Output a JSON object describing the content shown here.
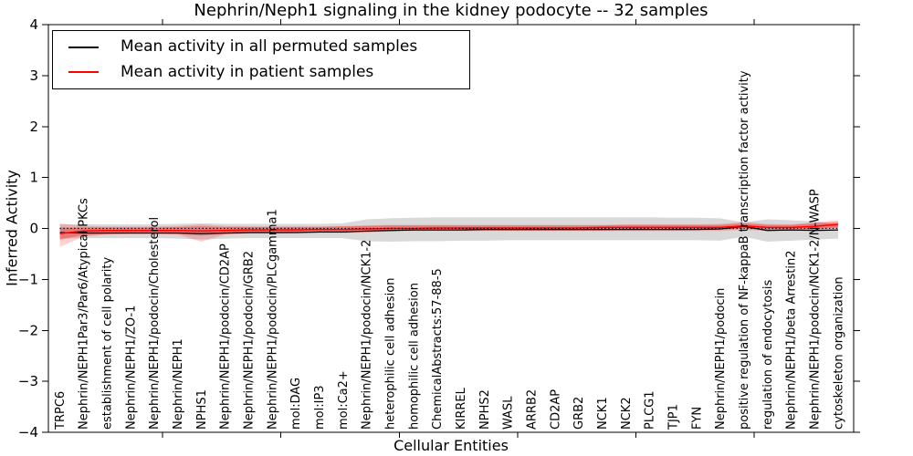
{
  "title": "Nephrin/Neph1 signaling in the kidney podocyte -- 32 samples",
  "legend": {
    "items": [
      {
        "label": "Mean activity in all permuted samples",
        "color": "#000000"
      },
      {
        "label": "Mean activity in patient samples",
        "color": "#ff0000"
      }
    ],
    "position": "upper left"
  },
  "chart_data": {
    "type": "line",
    "title": "Nephrin/Neph1 signaling in the kidney podocyte -- 32 samples",
    "xlabel": "Cellular Entities",
    "ylabel": "Inferred Activity",
    "ylim": [
      -4,
      4
    ],
    "ytick_labels": [
      "4",
      "3",
      "2",
      "1",
      "0",
      "−1",
      "−2",
      "−3",
      "−4"
    ],
    "grid": false,
    "legend_position": "upper left",
    "reference_line": {
      "y": 0,
      "style": "dotted",
      "color": "#000000"
    },
    "band_colors": {
      "permuted": "#aaaaaa",
      "patient": "#ff0000"
    },
    "categories": [
      "TRPC6",
      "Nephrin/NEPH1Par3/Par6/Atypical PKCs",
      "establishment of cell polarity",
      "Nephrin/NEPH1/ZO-1",
      "Nephrin/NEPH1/podocin/Cholesterol",
      "Nephrin/NEPH1",
      "NPHS1",
      "Nephrin/NEPH1/podocin/CD2AP",
      "Nephrin/NEPH1/podocin/GRB2",
      "Nephrin/NEPH1/podocin/PLCgamma1",
      "mol:DAG",
      "mol:IP3",
      "mol:Ca2+",
      "Nephrin/NEPH1/podocin/NCK1-2",
      "heterophilic cell adhesion",
      "homophilic cell adhesion",
      "ChemicalAbstracts:57-88-5",
      "KIRREL",
      "NPHS2",
      "WASL",
      "ARRB2",
      "CD2AP",
      "GRB2",
      "NCK1",
      "NCK2",
      "PLCG1",
      "TJP1",
      "FYN",
      "Nephrin/NEPH1/podocin",
      "positive regulation of NF-kappaB transcription factor activity",
      "regulation of endocytosis",
      "Nephrin/NEPH1/beta Arrestin2",
      "Nephrin/NEPH1/podocin/NCK1-2/N-WASP",
      "cytoskeleton organization"
    ],
    "series": [
      {
        "name": "Mean activity in all permuted samples",
        "color": "#000000",
        "values": [
          -0.08,
          -0.09,
          -0.09,
          -0.09,
          -0.09,
          -0.09,
          -0.1,
          -0.09,
          -0.08,
          -0.08,
          -0.08,
          -0.07,
          -0.07,
          -0.05,
          -0.04,
          -0.03,
          -0.03,
          -0.03,
          -0.02,
          -0.02,
          -0.02,
          -0.02,
          -0.02,
          -0.02,
          -0.02,
          -0.02,
          -0.02,
          -0.02,
          -0.01,
          0.04,
          -0.04,
          -0.03,
          -0.04,
          -0.03
        ]
      },
      {
        "name": "Mean activity in patient samples",
        "color": "#ff0000",
        "values": [
          -0.1,
          -0.05,
          -0.04,
          -0.04,
          -0.04,
          -0.04,
          -0.05,
          -0.04,
          -0.03,
          -0.03,
          -0.03,
          -0.02,
          -0.02,
          -0.01,
          0.0,
          0.0,
          0.01,
          0.01,
          0.01,
          0.01,
          0.01,
          0.01,
          0.01,
          0.02,
          0.02,
          0.02,
          0.02,
          0.02,
          0.02,
          0.05,
          0.02,
          0.02,
          0.04,
          0.08
        ]
      }
    ],
    "bands": [
      {
        "name": "permuted-band",
        "color": "#aaaaaa",
        "opacity": 0.45,
        "upper": [
          0.08,
          0.08,
          0.08,
          0.08,
          0.08,
          0.09,
          0.1,
          0.09,
          0.09,
          0.09,
          0.09,
          0.09,
          0.1,
          0.18,
          0.2,
          0.21,
          0.22,
          0.22,
          0.22,
          0.22,
          0.22,
          0.22,
          0.22,
          0.22,
          0.22,
          0.22,
          0.21,
          0.21,
          0.2,
          0.12,
          0.18,
          0.16,
          0.14,
          0.08
        ],
        "lower": [
          -0.2,
          -0.19,
          -0.19,
          -0.19,
          -0.19,
          -0.2,
          -0.22,
          -0.2,
          -0.19,
          -0.19,
          -0.19,
          -0.19,
          -0.19,
          -0.25,
          -0.26,
          -0.25,
          -0.25,
          -0.24,
          -0.24,
          -0.23,
          -0.23,
          -0.23,
          -0.23,
          -0.23,
          -0.23,
          -0.23,
          -0.23,
          -0.23,
          -0.24,
          -0.16,
          -0.26,
          -0.24,
          -0.22,
          -0.2
        ]
      },
      {
        "name": "patient-band-outer",
        "color": "#ff0000",
        "opacity": 0.18,
        "upper": [
          0.1,
          0.05,
          0.04,
          0.04,
          0.04,
          0.05,
          0.08,
          0.05,
          0.04,
          0.04,
          0.04,
          0.04,
          0.05,
          0.06,
          0.07,
          0.07,
          0.07,
          0.07,
          0.07,
          0.07,
          0.07,
          0.07,
          0.07,
          0.07,
          0.08,
          0.08,
          0.08,
          0.08,
          0.09,
          0.13,
          0.09,
          0.08,
          0.12,
          0.16
        ],
        "lower": [
          -0.36,
          -0.16,
          -0.12,
          -0.11,
          -0.11,
          -0.12,
          -0.26,
          -0.12,
          -0.1,
          -0.1,
          -0.09,
          -0.09,
          -0.09,
          -0.08,
          -0.06,
          -0.05,
          -0.05,
          -0.05,
          -0.05,
          -0.05,
          -0.05,
          -0.05,
          -0.05,
          -0.05,
          -0.05,
          -0.05,
          -0.05,
          -0.05,
          -0.05,
          -0.03,
          -0.05,
          -0.05,
          -0.04,
          -0.02
        ]
      },
      {
        "name": "patient-band-inner",
        "color": "#ff0000",
        "opacity": 0.32,
        "upper": [
          0.02,
          0.02,
          0.02,
          0.02,
          0.02,
          0.03,
          0.04,
          0.03,
          0.03,
          0.03,
          0.03,
          0.03,
          0.04,
          0.05,
          0.06,
          0.06,
          0.06,
          0.06,
          0.06,
          0.06,
          0.06,
          0.06,
          0.06,
          0.06,
          0.07,
          0.07,
          0.07,
          0.07,
          0.07,
          0.1,
          0.07,
          0.07,
          0.1,
          0.13
        ],
        "lower": [
          -0.22,
          -0.13,
          -0.11,
          -0.1,
          -0.1,
          -0.11,
          -0.14,
          -0.11,
          -0.09,
          -0.09,
          -0.08,
          -0.08,
          -0.08,
          -0.07,
          -0.05,
          -0.04,
          -0.04,
          -0.04,
          -0.04,
          -0.04,
          -0.04,
          -0.04,
          -0.04,
          -0.04,
          -0.03,
          -0.03,
          -0.03,
          -0.03,
          -0.03,
          0.0,
          -0.03,
          -0.03,
          -0.02,
          0.02
        ]
      }
    ]
  }
}
